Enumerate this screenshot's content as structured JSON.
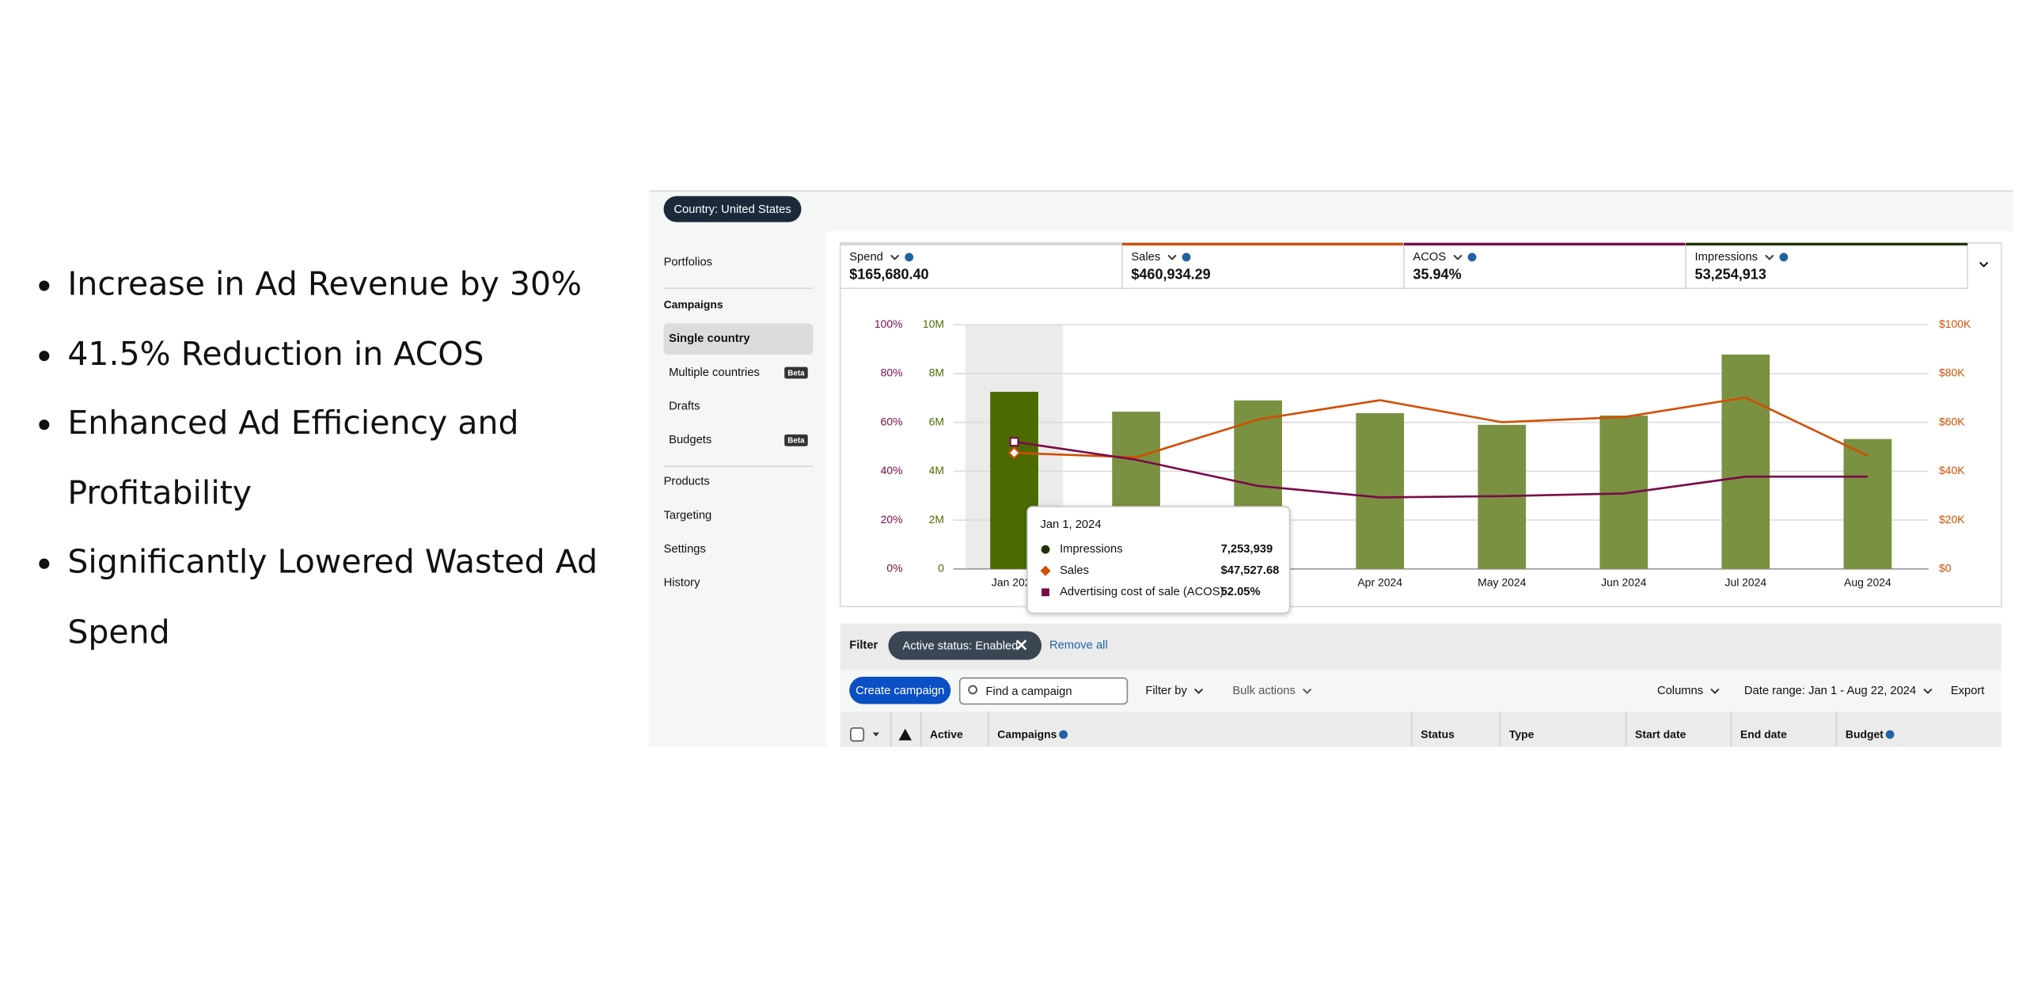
{
  "bullets": [
    "Increase in Ad Revenue by 30%",
    "41.5% Reduction in ACOS",
    "Enhanced Ad Efficiency and Profitability",
    "Significantly Lowered Wasted Ad Spend"
  ],
  "country_chip": "Country: United States",
  "sidebar": {
    "top": "Portfolios",
    "campaigns_heading": "Campaigns",
    "campaign_items": [
      {
        "label": "Single country",
        "selected": true
      },
      {
        "label": "Multiple countries",
        "badge": "Beta"
      },
      {
        "label": "Drafts"
      },
      {
        "label": "Budgets",
        "badge": "Beta"
      }
    ],
    "more_items": [
      "Products",
      "Targeting",
      "Settings",
      "History"
    ]
  },
  "metrics": [
    {
      "label": "Spend",
      "value": "$165,680.40",
      "color": "#d5d9d9"
    },
    {
      "label": "Sales",
      "value": "$460,934.29",
      "color": "#d24e00"
    },
    {
      "label": "ACOS",
      "value": "35.94%",
      "color": "#7a0a4a"
    },
    {
      "label": "Impressions",
      "value": "53,254,913",
      "color": "#1f3300"
    }
  ],
  "chart_data": {
    "type": "bar_line",
    "categories": [
      "Jan 2024",
      null,
      null,
      "Apr 2024",
      "May 2024",
      "Jun 2024",
      "Jul 2024",
      "Aug 2024"
    ],
    "highlighted_category": 0,
    "series": [
      {
        "name": "Impressions",
        "type": "bar",
        "axis": "y",
        "color": "#7a9142",
        "highlight_color": "#4b6b00",
        "values": [
          7253939,
          6440000,
          6900000,
          6380000,
          5900000,
          6280000,
          8780000,
          5320000
        ]
      },
      {
        "name": "Sales",
        "type": "line",
        "axis": "y2",
        "color": "#d24e00",
        "values": [
          47527.68,
          45700,
          61200,
          69100,
          60100,
          62200,
          70200,
          46300
        ]
      },
      {
        "name": "Advertising cost of sale (ACOS)",
        "type": "line",
        "axis": "y3",
        "color": "#7a0a4a",
        "values": [
          52.05,
          44.7,
          34,
          29.3,
          29.8,
          30.9,
          37.8,
          37.8
        ]
      }
    ],
    "ylim": [
      0,
      10000000
    ],
    "yticks": [
      0,
      {
        "value": 2000000,
        "label": "2M"
      },
      {
        "value": 4000000,
        "label": "4M"
      },
      {
        "value": 6000000,
        "label": "6M"
      },
      {
        "value": 8000000,
        "label": "8M"
      },
      {
        "value": 10000000,
        "label": "10M"
      }
    ],
    "y2lim": [
      0,
      100000
    ],
    "y2ticks": [
      {
        "value": 0,
        "label": "$0"
      },
      {
        "value": 20000,
        "label": "$20K"
      },
      {
        "value": 40000,
        "label": "$40K"
      },
      {
        "value": 60000,
        "label": "$60K"
      },
      {
        "value": 80000,
        "label": "$80K"
      },
      {
        "value": 100000,
        "label": "$100K"
      }
    ],
    "y3lim": [
      0,
      100
    ],
    "y3ticks": [
      {
        "value": 0,
        "label": "0%"
      },
      {
        "value": 20,
        "label": "20%"
      },
      {
        "value": 40,
        "label": "40%"
      },
      {
        "value": 60,
        "label": "60%"
      },
      {
        "value": 80,
        "label": "80%"
      },
      {
        "value": 100,
        "label": "100%"
      }
    ],
    "grid": true,
    "tooltip": {
      "title": "Jan 1, 2024",
      "values": [
        "7,253,939",
        "$47,527.68",
        "52.05%"
      ]
    }
  },
  "filter": {
    "label": "Filter",
    "chip": "Active status: Enabled",
    "remove": "Remove all"
  },
  "toolbar": {
    "create": "Create campaign",
    "search": "Find a campaign",
    "filter_by": "Filter by",
    "bulk": "Bulk actions",
    "columns": "Columns",
    "date_range": "Date range: Jan 1 - Aug 22, 2024",
    "export": "Export"
  },
  "table_headers": [
    "Active",
    "Campaigns",
    "Status",
    "Type",
    "Start date",
    "End date",
    "Budget"
  ]
}
